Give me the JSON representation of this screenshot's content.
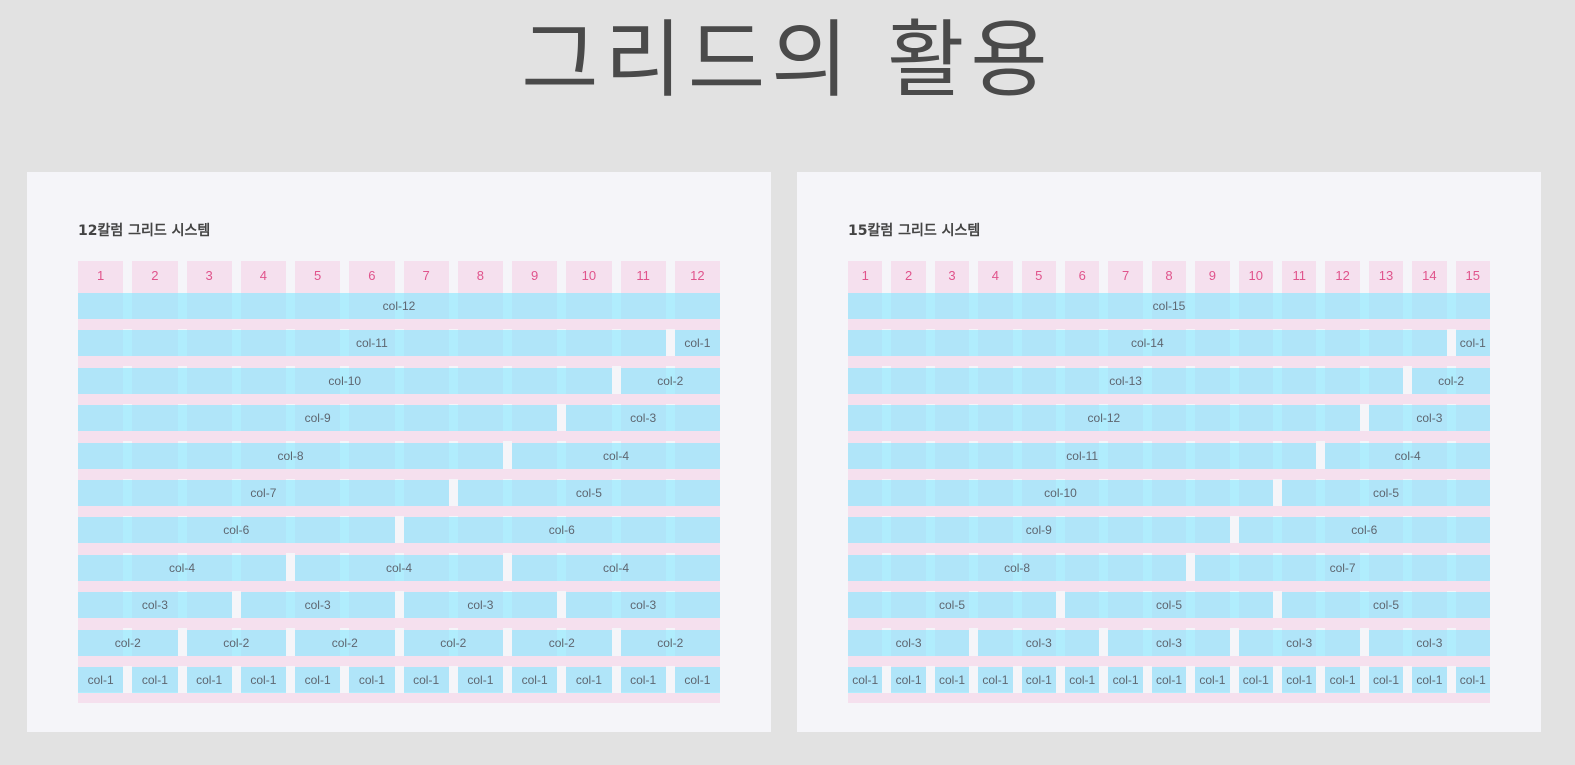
{
  "title": "그리드의 활용",
  "colors": {
    "background": "#e2e2e2",
    "panel": "#f5f5f9",
    "column_fill": "#f5e0ee",
    "column_number": "#e0548c",
    "cell_fill": "#86e8ff"
  },
  "panels": [
    {
      "title": "12칼럼 그리드 시스템",
      "columns": 12,
      "numbers": [
        "1",
        "2",
        "3",
        "4",
        "5",
        "6",
        "7",
        "8",
        "9",
        "10",
        "11",
        "12"
      ],
      "rows": [
        [
          {
            "span": 12,
            "label": "col-12"
          }
        ],
        [
          {
            "span": 11,
            "label": "col-11"
          },
          {
            "span": 1,
            "label": "col-1"
          }
        ],
        [
          {
            "span": 10,
            "label": "col-10"
          },
          {
            "span": 2,
            "label": "col-2"
          }
        ],
        [
          {
            "span": 9,
            "label": "col-9"
          },
          {
            "span": 3,
            "label": "col-3"
          }
        ],
        [
          {
            "span": 8,
            "label": "col-8"
          },
          {
            "span": 4,
            "label": "col-4"
          }
        ],
        [
          {
            "span": 7,
            "label": "col-7"
          },
          {
            "span": 5,
            "label": "col-5"
          }
        ],
        [
          {
            "span": 6,
            "label": "col-6"
          },
          {
            "span": 6,
            "label": "col-6"
          }
        ],
        [
          {
            "span": 4,
            "label": "col-4"
          },
          {
            "span": 4,
            "label": "col-4"
          },
          {
            "span": 4,
            "label": "col-4"
          }
        ],
        [
          {
            "span": 3,
            "label": "col-3"
          },
          {
            "span": 3,
            "label": "col-3"
          },
          {
            "span": 3,
            "label": "col-3"
          },
          {
            "span": 3,
            "label": "col-3"
          }
        ],
        [
          {
            "span": 2,
            "label": "col-2"
          },
          {
            "span": 2,
            "label": "col-2"
          },
          {
            "span": 2,
            "label": "col-2"
          },
          {
            "span": 2,
            "label": "col-2"
          },
          {
            "span": 2,
            "label": "col-2"
          },
          {
            "span": 2,
            "label": "col-2"
          }
        ],
        [
          {
            "span": 1,
            "label": "col-1"
          },
          {
            "span": 1,
            "label": "col-1"
          },
          {
            "span": 1,
            "label": "col-1"
          },
          {
            "span": 1,
            "label": "col-1"
          },
          {
            "span": 1,
            "label": "col-1"
          },
          {
            "span": 1,
            "label": "col-1"
          },
          {
            "span": 1,
            "label": "col-1"
          },
          {
            "span": 1,
            "label": "col-1"
          },
          {
            "span": 1,
            "label": "col-1"
          },
          {
            "span": 1,
            "label": "col-1"
          },
          {
            "span": 1,
            "label": "col-1"
          },
          {
            "span": 1,
            "label": "col-1"
          }
        ]
      ]
    },
    {
      "title": "15칼럼 그리드 시스템",
      "columns": 15,
      "numbers": [
        "1",
        "2",
        "3",
        "4",
        "5",
        "6",
        "7",
        "8",
        "9",
        "10",
        "11",
        "12",
        "13",
        "14",
        "15"
      ],
      "rows": [
        [
          {
            "span": 15,
            "label": "col-15"
          }
        ],
        [
          {
            "span": 14,
            "label": "col-14"
          },
          {
            "span": 1,
            "label": "col-1"
          }
        ],
        [
          {
            "span": 13,
            "label": "col-13"
          },
          {
            "span": 2,
            "label": "col-2"
          }
        ],
        [
          {
            "span": 12,
            "label": "col-12"
          },
          {
            "span": 3,
            "label": "col-3"
          }
        ],
        [
          {
            "span": 11,
            "label": "col-11"
          },
          {
            "span": 4,
            "label": "col-4"
          }
        ],
        [
          {
            "span": 10,
            "label": "col-10"
          },
          {
            "span": 5,
            "label": "col-5"
          }
        ],
        [
          {
            "span": 9,
            "label": "col-9"
          },
          {
            "span": 6,
            "label": "col-6"
          }
        ],
        [
          {
            "span": 8,
            "label": "col-8"
          },
          {
            "span": 7,
            "label": "col-7"
          }
        ],
        [
          {
            "span": 5,
            "label": "col-5"
          },
          {
            "span": 5,
            "label": "col-5"
          },
          {
            "span": 5,
            "label": "col-5"
          }
        ],
        [
          {
            "span": 3,
            "label": "col-3"
          },
          {
            "span": 3,
            "label": "col-3"
          },
          {
            "span": 3,
            "label": "col-3"
          },
          {
            "span": 3,
            "label": "col-3"
          },
          {
            "span": 3,
            "label": "col-3"
          }
        ],
        [
          {
            "span": 1,
            "label": "col-1"
          },
          {
            "span": 1,
            "label": "col-1"
          },
          {
            "span": 1,
            "label": "col-1"
          },
          {
            "span": 1,
            "label": "col-1"
          },
          {
            "span": 1,
            "label": "col-1"
          },
          {
            "span": 1,
            "label": "col-1"
          },
          {
            "span": 1,
            "label": "col-1"
          },
          {
            "span": 1,
            "label": "col-1"
          },
          {
            "span": 1,
            "label": "col-1"
          },
          {
            "span": 1,
            "label": "col-1"
          },
          {
            "span": 1,
            "label": "col-1"
          },
          {
            "span": 1,
            "label": "col-1"
          },
          {
            "span": 1,
            "label": "col-1"
          },
          {
            "span": 1,
            "label": "col-1"
          },
          {
            "span": 1,
            "label": "col-1"
          }
        ]
      ]
    }
  ]
}
